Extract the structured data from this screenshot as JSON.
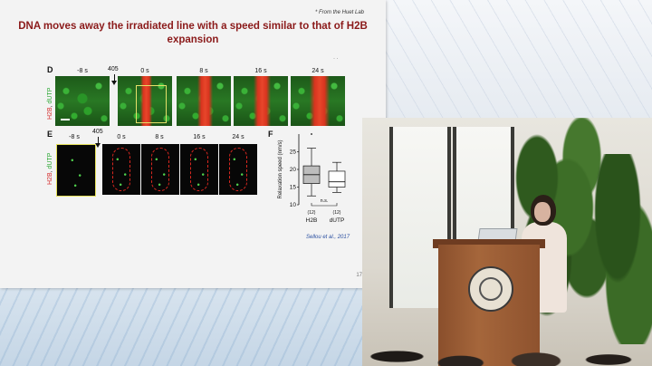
{
  "slide": {
    "credit": "* From the Huet Lab",
    "title": "DNA moves away the irradiated line with a speed similar to that of H2B expansion",
    "dot_mark": "· ·",
    "citation": "Sellou et al., 2017",
    "page_number": "17"
  },
  "panel_d": {
    "letter": "D",
    "label_dutp": "dUTP",
    "label_sep": ", ",
    "label_h2b": "H2B",
    "laser_label": "405",
    "times": [
      "-8 s",
      "0 s",
      "8 s",
      "16 s",
      "24 s"
    ]
  },
  "panel_e": {
    "letter": "E",
    "label_dutp": "dUTP",
    "label_sep": ", ",
    "label_h2b": "H2B",
    "laser_label": "405",
    "times": [
      "-8 s",
      "0 s",
      "8 s",
      "16 s",
      "24 s"
    ]
  },
  "panel_f": {
    "letter": "F"
  },
  "chart_data": {
    "type": "box",
    "ylabel": "Relaxation speed (nm/s)",
    "ylim": [
      10,
      30
    ],
    "yticks": [
      10,
      15,
      20,
      25
    ],
    "categories": [
      "H2B",
      "dUTP"
    ],
    "counts": [
      "(12)",
      "(12)"
    ],
    "significance": "n.s.",
    "boxes": [
      {
        "name": "H2B",
        "whisker_low": 12.5,
        "q1": 16,
        "median": 18.5,
        "q3": 21,
        "whisker_high": 26,
        "outlier": 30,
        "color": "#bdbdbd"
      },
      {
        "name": "dUTP",
        "whisker_low": 13.5,
        "q1": 15,
        "median": 16.5,
        "q3": 19.5,
        "whisker_high": 22,
        "color": "#ffffff"
      }
    ]
  },
  "colors": {
    "title": "#8b1a1a",
    "green_channel": "#2ea836",
    "red_channel": "#d42a2a",
    "citation": "#2a4fa0"
  }
}
